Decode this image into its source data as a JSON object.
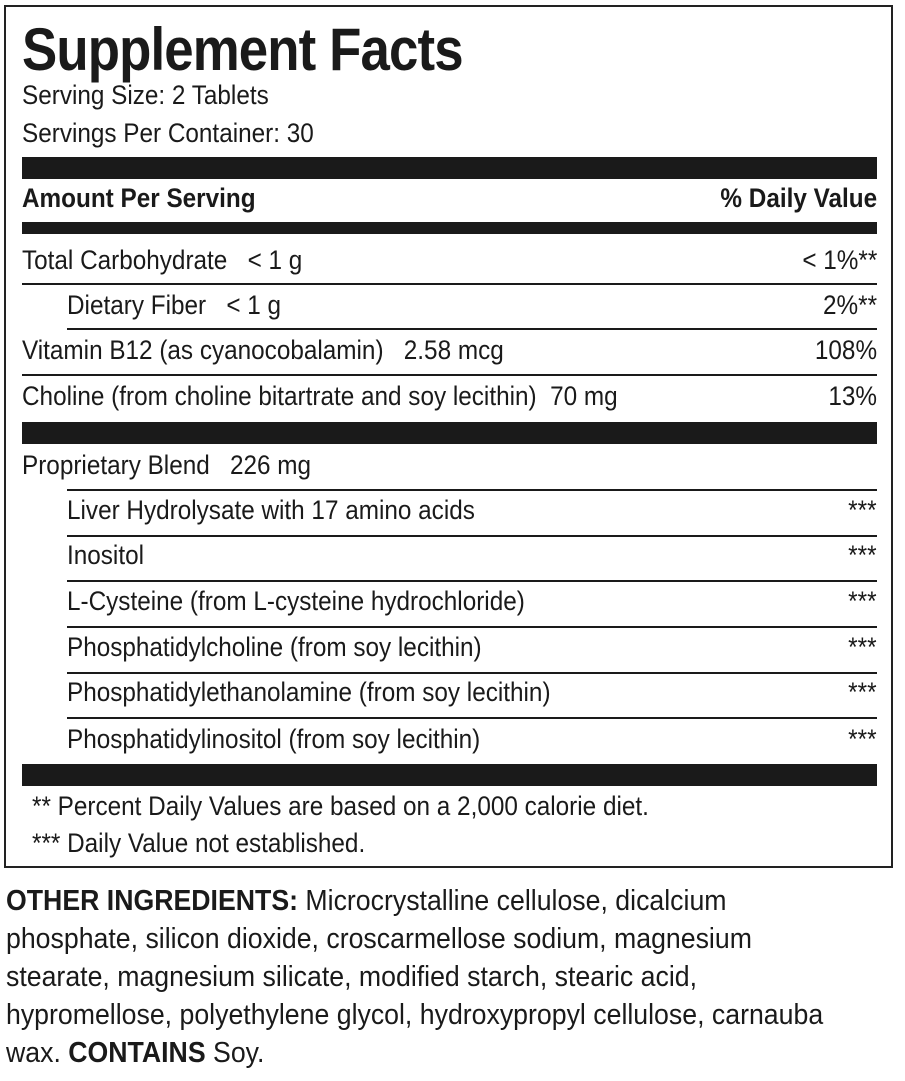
{
  "title": "Supplement Facts",
  "serving_size": "Serving Size: 2 Tablets",
  "servings_per_container": "Servings Per Container: 30",
  "header": {
    "left": "Amount Per Serving",
    "right": "% Daily Value"
  },
  "nutrients": [
    {
      "name": "Total Carbohydrate   < 1 g",
      "dv": "< 1%**"
    },
    {
      "name": "Dietary Fiber   < 1 g",
      "dv": "2%**"
    },
    {
      "name": "Vitamin B12 (as cyanocobalamin)   2.58 mcg",
      "dv": "108%"
    },
    {
      "name": "Choline (from choline bitartrate and soy lecithin)  70 mg",
      "dv": "13%"
    }
  ],
  "blend": {
    "name": "Proprietary Blend   226 mg",
    "items": [
      {
        "name": "Liver Hydrolysate with 17 amino acids",
        "dv": "***"
      },
      {
        "name": "Inositol",
        "dv": "***"
      },
      {
        "name": "L-Cysteine (from L-cysteine hydrochloride)",
        "dv": "***"
      },
      {
        "name": "Phosphatidylcholine (from soy lecithin)",
        "dv": "***"
      },
      {
        "name": "Phosphatidylethanolamine (from soy lecithin)",
        "dv": "***"
      },
      {
        "name": "Phosphatidylinositol (from soy lecithin)",
        "dv": "***"
      }
    ]
  },
  "footnotes": [
    "** Percent Daily Values are based on a 2,000 calorie diet.",
    "*** Daily Value not established."
  ],
  "other_ingredients": {
    "label": "OTHER INGREDIENTS:",
    "text": " Microcrystalline cellulose, dicalcium phosphate, silicon dioxide, croscarmellose sodium, magnesium stearate, magnesium silicate, modified starch, stearic acid, hypromellose, polyethylene glycol, hydroxypropyl cellulose, carnauba wax. ",
    "contains_label": "CONTAINS",
    "contains_text": " Soy."
  }
}
